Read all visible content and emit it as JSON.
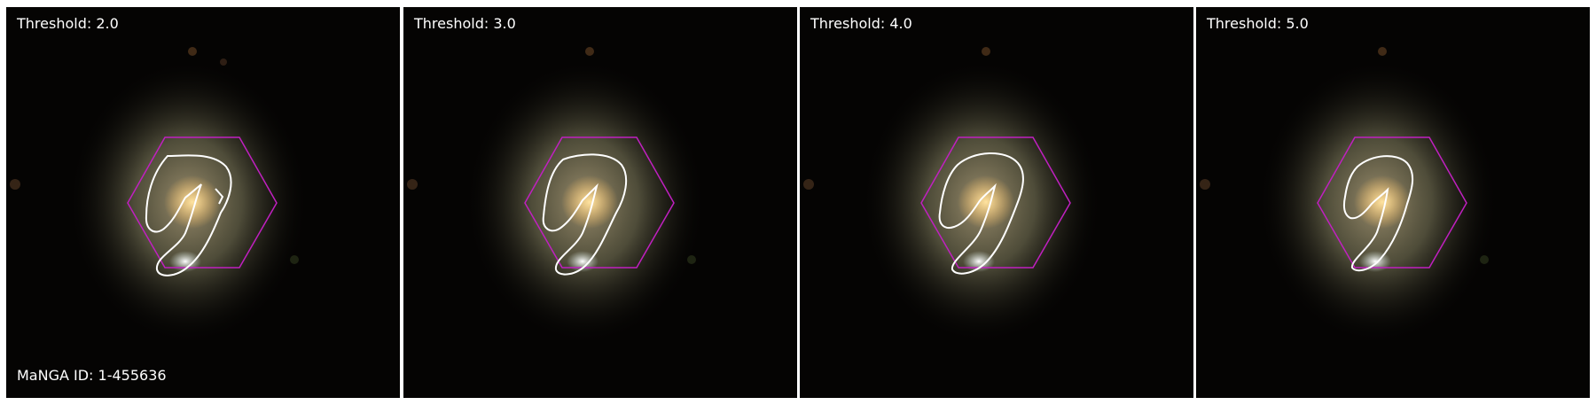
{
  "panels": [
    {
      "threshold_label": "Threshold: 2.0"
    },
    {
      "threshold_label": "Threshold: 3.0"
    },
    {
      "threshold_label": "Threshold: 4.0"
    },
    {
      "threshold_label": "Threshold: 5.0"
    }
  ],
  "manga_id_label": "MaNGA ID: 1-455636",
  "colors": {
    "hexagon": "#c020c0",
    "contour": "#ffffff",
    "background": "#050403"
  }
}
